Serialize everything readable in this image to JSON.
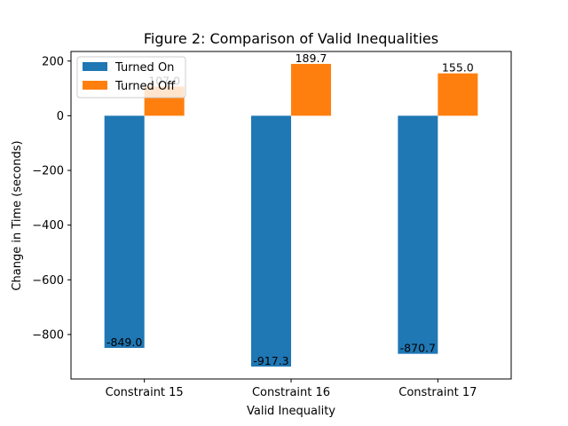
{
  "chart_data": {
    "type": "bar",
    "title": "Figure 2: Comparison of Valid Inequalities",
    "xlabel": "Valid Inequality",
    "ylabel": "Change in Time (seconds)",
    "categories": [
      "Constraint 15",
      "Constraint 16",
      "Constraint 17"
    ],
    "series": [
      {
        "name": "Turned On",
        "color": "#1f77b4",
        "values": [
          -849.0,
          -917.3,
          -870.7
        ],
        "labels": [
          "-849.0",
          "-917.3",
          "-870.7"
        ]
      },
      {
        "name": "Turned Off",
        "color": "#ff7f0e",
        "values": [
          107.0,
          189.7,
          155.0
        ],
        "labels": [
          "107.0",
          "189.7",
          "155.0"
        ]
      }
    ],
    "ylim": [
      -962.6,
      235.0
    ],
    "yticks": [
      200,
      0,
      -200,
      -400,
      -600,
      -800
    ],
    "ytick_labels": [
      "200",
      "0",
      "−200",
      "−400",
      "−600",
      "−800"
    ],
    "grid": false,
    "legend_position": "top-left"
  }
}
